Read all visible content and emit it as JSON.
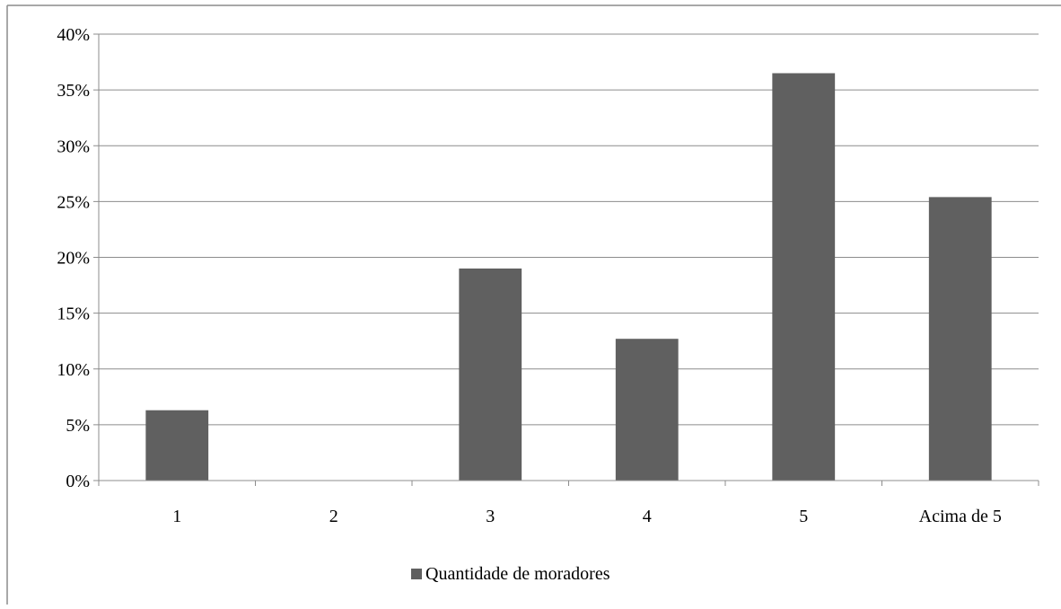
{
  "chart_data": {
    "type": "bar",
    "categories": [
      "1",
      "2",
      "3",
      "4",
      "5",
      "Acima de 5"
    ],
    "series": [
      {
        "name": "Quantidade de moradores",
        "values": [
          6.3,
          0,
          19.0,
          12.7,
          36.5,
          25.4
        ]
      }
    ],
    "yticks": [
      "0%",
      "5%",
      "10%",
      "15%",
      "20%",
      "25%",
      "30%",
      "35%",
      "40%"
    ],
    "ylim": [
      0,
      40
    ],
    "title": "",
    "xlabel": "",
    "ylabel": "",
    "grid": true,
    "legend_position": "bottom",
    "bar_color": "#606060"
  }
}
